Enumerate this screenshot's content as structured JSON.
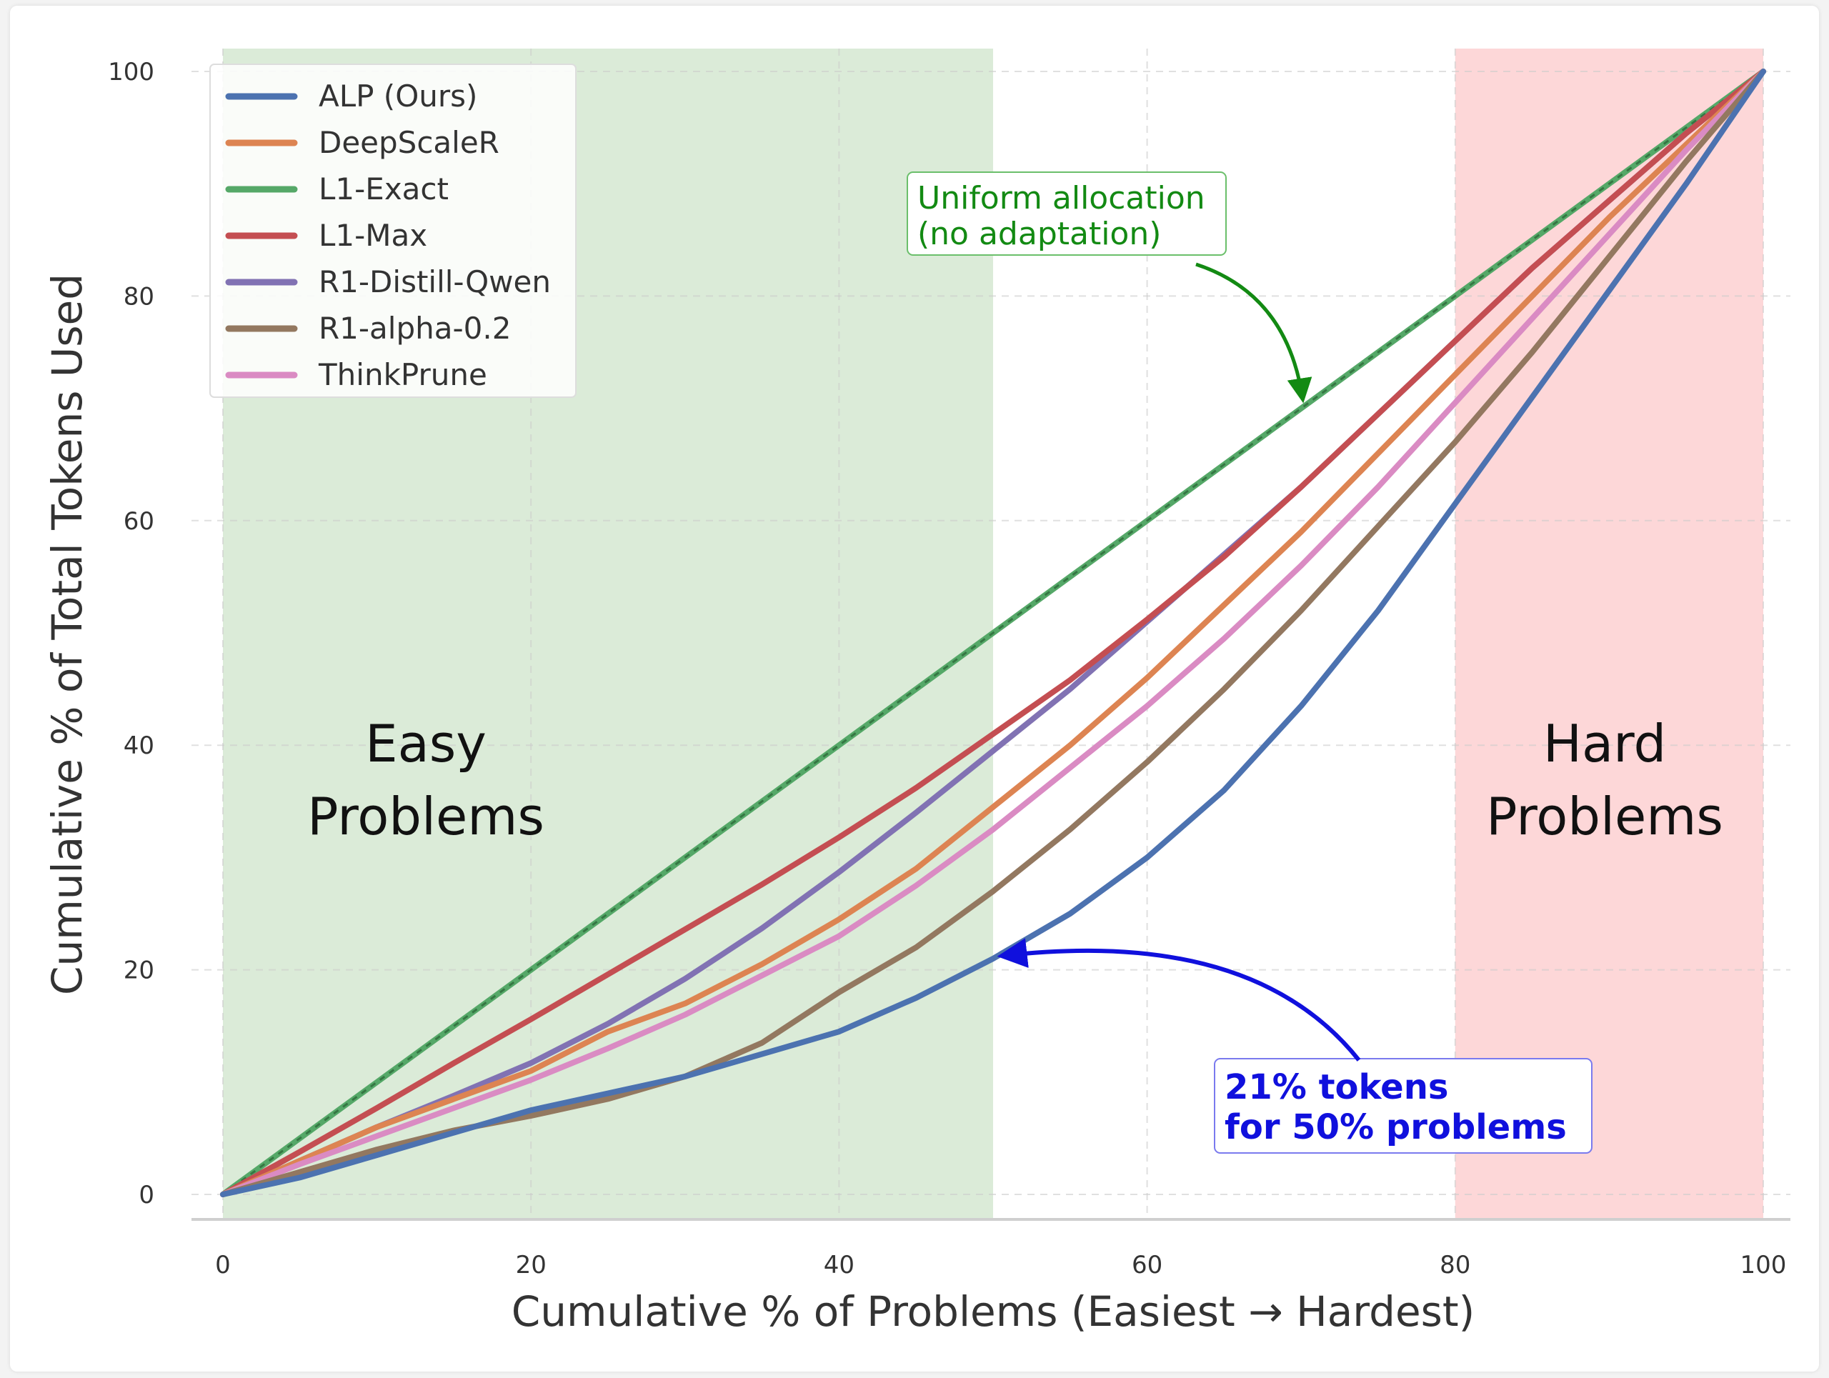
{
  "chart_data": {
    "type": "line",
    "xlabel": "Cumulative % of Problems (Easiest → Hardest)",
    "ylabel": "Cumulative % of Total Tokens Used",
    "xlim": [
      0,
      100
    ],
    "ylim": [
      0,
      100
    ],
    "xticks": [
      0,
      20,
      40,
      60,
      80,
      100
    ],
    "yticks": [
      0,
      20,
      40,
      60,
      80,
      100
    ],
    "grid": true,
    "legend": "top-left",
    "x": [
      0,
      5,
      10,
      15,
      20,
      25,
      30,
      35,
      40,
      45,
      50,
      55,
      60,
      65,
      70,
      75,
      80,
      85,
      90,
      95,
      100
    ],
    "series": [
      {
        "name": "ALP (Ours)",
        "color": "#4c72b0",
        "values": [
          0,
          1.5,
          3.5,
          5.5,
          7.5,
          9,
          10.5,
          12.5,
          14.5,
          17.5,
          21,
          25,
          30,
          36,
          43.5,
          52,
          61.5,
          71,
          80.5,
          90,
          100
        ]
      },
      {
        "name": "DeepScaleR",
        "color": "#dd8452",
        "values": [
          0,
          3,
          6,
          8.5,
          11,
          14.5,
          17,
          20.5,
          24.5,
          29,
          34.5,
          40,
          46,
          52.5,
          59,
          66,
          73,
          80,
          87,
          93.5,
          100
        ]
      },
      {
        "name": "L1-Exact",
        "color": "#55a868",
        "values": [
          0,
          5,
          10,
          15,
          20,
          25,
          30,
          35,
          40,
          45,
          50,
          55,
          60,
          65,
          70,
          75,
          80,
          85,
          90,
          95,
          100
        ]
      },
      {
        "name": "L1-Max",
        "color": "#c44e52",
        "values": [
          0,
          3.8,
          7.7,
          11.7,
          15.6,
          19.6,
          23.6,
          27.6,
          31.8,
          36.2,
          41,
          45.8,
          51.2,
          56.8,
          63,
          69.5,
          76,
          82.5,
          88.5,
          94.5,
          100
        ]
      },
      {
        "name": "R1-Distill-Qwen",
        "color": "#8172b3",
        "values": [
          0,
          3,
          6,
          8.8,
          11.7,
          15.2,
          19.2,
          23.7,
          28.7,
          34,
          39.5,
          45,
          51,
          57,
          63,
          69.5,
          76,
          82.5,
          88.5,
          94.5,
          100
        ]
      },
      {
        "name": "R1-alpha-0.2",
        "color": "#937860",
        "values": [
          0,
          2,
          4,
          5.7,
          7,
          8.5,
          10.5,
          13.5,
          18,
          22,
          27,
          32.5,
          38.5,
          45,
          52,
          59.5,
          67,
          75,
          83.5,
          92,
          100
        ]
      },
      {
        "name": "ThinkPrune",
        "color": "#da8bc3",
        "values": [
          0,
          2.7,
          5.2,
          7.7,
          10.2,
          13,
          16,
          19.5,
          23,
          27.5,
          32.5,
          38,
          43.5,
          49.5,
          56,
          63,
          70.5,
          78,
          85.5,
          93,
          100
        ]
      }
    ],
    "regions": [
      {
        "label_line1": "Easy",
        "label_line2": "Problems",
        "x_from": 0,
        "x_to": 50,
        "color": "#dbebd8"
      },
      {
        "label_line1": "Hard",
        "label_line2": "Problems",
        "x_from": 80,
        "x_to": 100,
        "color": "#fdd7d8"
      }
    ],
    "annotations": [
      {
        "line1": "Uniform allocation",
        "line2": "(no adaptation)",
        "color": "#138a13",
        "point_x": 70,
        "point_y": 70
      },
      {
        "line1": "21% tokens",
        "line2": "for 50% problems",
        "color": "#1010dd",
        "point_x": 50,
        "point_y": 21
      }
    ]
  }
}
